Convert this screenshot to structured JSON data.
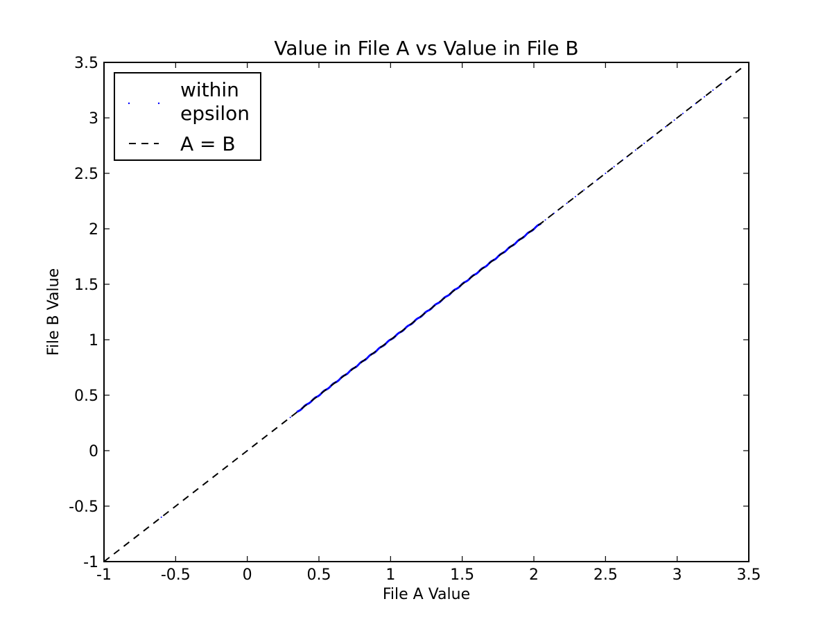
{
  "chart_data": {
    "type": "scatter",
    "title": "Value in File A vs Value in File B",
    "xlabel": "File A Value",
    "ylabel": "File B Value",
    "xlim": [
      -1,
      3.5
    ],
    "ylim": [
      -1,
      3.5
    ],
    "x_ticks": [
      -1,
      -0.5,
      0,
      0.5,
      1,
      1.5,
      2,
      2.5,
      3,
      3.5
    ],
    "y_ticks": [
      -1,
      -0.5,
      0,
      0.5,
      1,
      1.5,
      2,
      2.5,
      3,
      3.5
    ],
    "x_tick_labels": [
      "-1",
      "-0.5",
      "0",
      "0.5",
      "1",
      "1.5",
      "2",
      "2.5",
      "3",
      "3.5"
    ],
    "y_tick_labels": [
      "-1",
      "-0.5",
      "0",
      "0.5",
      "1",
      "1.5",
      "2",
      "2.5",
      "3",
      "3.5"
    ],
    "grid": false,
    "legend": {
      "position": "top-left",
      "entries": [
        {
          "label_lines": [
            "within",
            "epsilon"
          ],
          "marker": "points",
          "color": "#0000ff"
        },
        {
          "label_lines": [
            "A = B"
          ],
          "marker": "dashed-line",
          "color": "#000000"
        }
      ]
    },
    "series": [
      {
        "name": "within epsilon",
        "kind": "points",
        "color": "#0000ff",
        "segments": [
          {
            "x_range": [
              0.35,
              2.05
            ],
            "note": "dense"
          },
          {
            "x_range": [
              2.05,
              3.35
            ],
            "note": "sparse"
          }
        ],
        "isolated_points": [
          [
            -0.6,
            -0.6
          ],
          [
            0.0,
            0.0
          ],
          [
            0.3,
            0.3
          ]
        ]
      },
      {
        "name": "A = B",
        "kind": "line",
        "style": "dashed",
        "color": "#000000",
        "x": [
          -1,
          3.45
        ],
        "y": [
          -1,
          3.45
        ]
      }
    ]
  }
}
